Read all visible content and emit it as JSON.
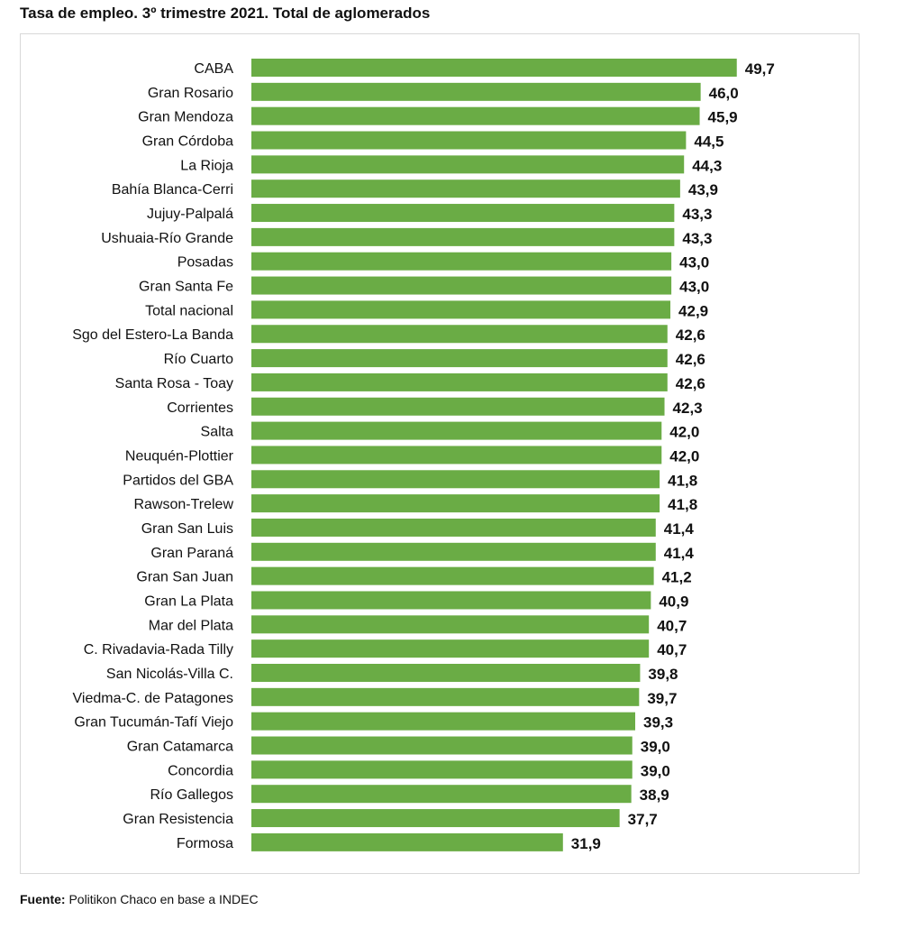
{
  "chart_data": {
    "type": "bar",
    "orientation": "horizontal",
    "title": "Tasa de empleo. 3º trimestre 2021. Total de aglomerados",
    "categories": [
      "CABA",
      "Gran Rosario",
      "Gran Mendoza",
      "Gran Córdoba",
      "La Rioja",
      "Bahía Blanca-Cerri",
      "Jujuy-Palpalá",
      "Ushuaia-Río Grande",
      "Posadas",
      "Gran Santa Fe",
      "Total nacional",
      "Sgo del Estero-La Banda",
      "Río Cuarto",
      "Santa Rosa - Toay",
      "Corrientes",
      "Salta",
      "Neuquén-Plottier",
      "Partidos del GBA",
      "Rawson-Trelew",
      "Gran San Luis",
      "Gran Paraná",
      "Gran San Juan",
      "Gran La Plata",
      "Mar del Plata",
      "C. Rivadavia-Rada Tilly",
      "San Nicolás-Villa C.",
      "Viedma-C. de Patagones",
      "Gran Tucumán-Tafí Viejo",
      "Gran Catamarca",
      "Concordia",
      "Río Gallegos",
      "Gran Resistencia",
      "Formosa"
    ],
    "values": [
      49.7,
      46.0,
      45.9,
      44.5,
      44.3,
      43.9,
      43.3,
      43.3,
      43.0,
      43.0,
      42.9,
      42.6,
      42.6,
      42.6,
      42.3,
      42.0,
      42.0,
      41.8,
      41.8,
      41.4,
      41.4,
      41.2,
      40.9,
      40.7,
      40.7,
      39.8,
      39.7,
      39.3,
      39.0,
      39.0,
      38.9,
      37.7,
      31.9
    ],
    "value_labels": [
      "49,7",
      "46,0",
      "45,9",
      "44,5",
      "44,3",
      "43,9",
      "43,3",
      "43,3",
      "43,0",
      "43,0",
      "42,9",
      "42,6",
      "42,6",
      "42,6",
      "42,3",
      "42,0",
      "42,0",
      "41,8",
      "41,8",
      "41,4",
      "41,4",
      "41,2",
      "40,9",
      "40,7",
      "40,7",
      "39,8",
      "39,7",
      "39,3",
      "39,0",
      "39,0",
      "38,9",
      "37,7",
      "31,9"
    ],
    "xlim": [
      0,
      50
    ],
    "grid": false,
    "bar_color": "#6aac45"
  },
  "footer": {
    "label": "Fuente:",
    "text": " Politikon Chaco en base a INDEC"
  }
}
